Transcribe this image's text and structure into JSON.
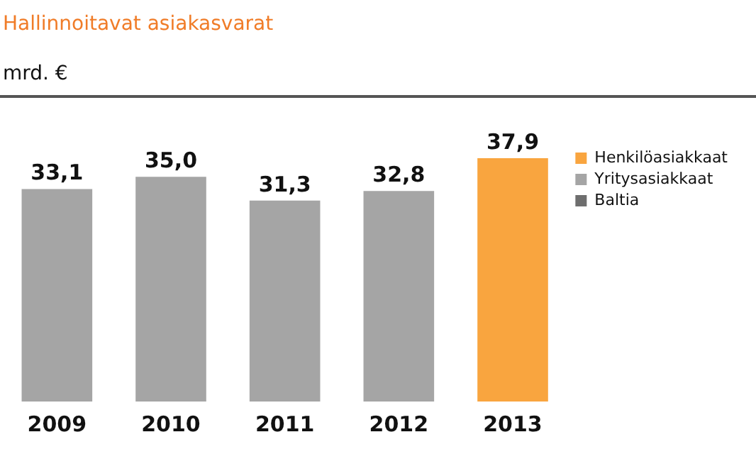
{
  "chart_data": {
    "type": "bar",
    "title": "Hallinnoitavat asiakasvarat",
    "subtitle": "mrd. €",
    "categories": [
      "2009",
      "2010",
      "2011",
      "2012",
      "2013"
    ],
    "stacked": true,
    "legend": "right",
    "grid": false,
    "tick_labels": "x",
    "series": [
      {
        "name": "Henkilöasiakkaat",
        "color": "#f9a53f",
        "values": [
          null,
          null,
          null,
          null,
          37.9
        ],
        "value_labels": [
          null,
          null,
          null,
          null,
          "37,9"
        ]
      },
      {
        "name": "Yritysasiakkaat",
        "color": "#a5a5a5",
        "values": [
          33.1,
          35.0,
          31.3,
          32.8,
          null
        ],
        "value_labels": [
          "33,1",
          "35,0",
          "31,3",
          "32,8",
          null
        ]
      },
      {
        "name": "Baltia",
        "color": "#6e6e6e",
        "values": [
          null,
          null,
          null,
          null,
          null
        ]
      }
    ]
  }
}
